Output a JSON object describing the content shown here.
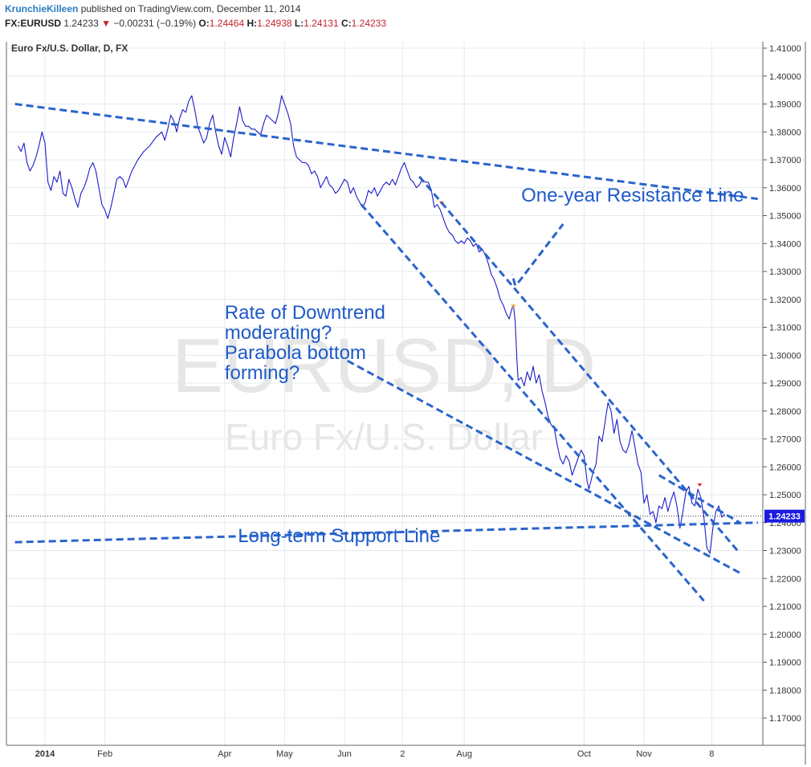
{
  "header": {
    "author": "KrunchieKilleen",
    "published_text": "published on TradingView.com, December 11, 2014",
    "symbol": "FX:EURUSD",
    "last": "1.24233",
    "change": "−0.00231 (−0.19%)",
    "open_label": "O:",
    "open": "1.24464",
    "high_label": "H:",
    "high": "1.24938",
    "low_label": "L:",
    "low": "1.24131",
    "close_label": "C:",
    "close": "1.24233"
  },
  "chart_data": {
    "type": "line",
    "title": "Euro Fx/U.S. Dollar, D, FX",
    "watermark_symbol": "EURUSD, D",
    "watermark_name": "Euro Fx/U.S. Dollar",
    "ylim": [
      1.16,
      1.415
    ],
    "y_ticks": [
      "1.41000",
      "1.40000",
      "1.39000",
      "1.38000",
      "1.37000",
      "1.36000",
      "1.35000",
      "1.34000",
      "1.33000",
      "1.32000",
      "1.31000",
      "1.30000",
      "1.29000",
      "1.28000",
      "1.27000",
      "1.26000",
      "1.25000",
      "1.24000",
      "1.23000",
      "1.22000",
      "1.21000",
      "1.20000",
      "1.19000",
      "1.18000",
      "1.17000"
    ],
    "x_ticks": [
      {
        "label": "2014",
        "t": 0.0,
        "bold": true
      },
      {
        "label": "Feb",
        "t": 1.0
      },
      {
        "label": "Apr",
        "t": 3.0
      },
      {
        "label": "May",
        "t": 4.0
      },
      {
        "label": "Jun",
        "t": 5.0
      },
      {
        "label": "2",
        "t": 5.97
      },
      {
        "label": "Aug",
        "t": 7.0
      },
      {
        "label": "Oct",
        "t": 9.0
      },
      {
        "label": "Nov",
        "t": 10.0
      },
      {
        "label": "8",
        "t": 11.13
      }
    ],
    "price_label": "1.24233",
    "price_level": 1.24233,
    "series": [
      {
        "color": "#1c1cc8",
        "points": [
          [
            -0.45,
            1.375
          ],
          [
            -0.4,
            1.373
          ],
          [
            -0.35,
            1.376
          ],
          [
            -0.3,
            1.369
          ],
          [
            -0.25,
            1.366
          ],
          [
            -0.2,
            1.368
          ],
          [
            -0.15,
            1.371
          ],
          [
            -0.1,
            1.375
          ],
          [
            -0.05,
            1.38
          ],
          [
            0.0,
            1.376
          ],
          [
            0.05,
            1.362
          ],
          [
            0.1,
            1.359
          ],
          [
            0.15,
            1.364
          ],
          [
            0.2,
            1.362
          ],
          [
            0.25,
            1.366
          ],
          [
            0.3,
            1.358
          ],
          [
            0.35,
            1.357
          ],
          [
            0.4,
            1.363
          ],
          [
            0.45,
            1.36
          ],
          [
            0.5,
            1.356
          ],
          [
            0.55,
            1.353
          ],
          [
            0.6,
            1.358
          ],
          [
            0.65,
            1.36
          ],
          [
            0.7,
            1.363
          ],
          [
            0.75,
            1.367
          ],
          [
            0.8,
            1.369
          ],
          [
            0.85,
            1.366
          ],
          [
            0.9,
            1.36
          ],
          [
            0.95,
            1.354
          ],
          [
            1.0,
            1.352
          ],
          [
            1.05,
            1.349
          ],
          [
            1.1,
            1.353
          ],
          [
            1.15,
            1.358
          ],
          [
            1.2,
            1.363
          ],
          [
            1.25,
            1.364
          ],
          [
            1.3,
            1.363
          ],
          [
            1.35,
            1.36
          ],
          [
            1.45,
            1.366
          ],
          [
            1.55,
            1.37
          ],
          [
            1.65,
            1.373
          ],
          [
            1.75,
            1.375
          ],
          [
            1.85,
            1.378
          ],
          [
            1.95,
            1.38
          ],
          [
            2.0,
            1.377
          ],
          [
            2.05,
            1.381
          ],
          [
            2.1,
            1.386
          ],
          [
            2.15,
            1.384
          ],
          [
            2.2,
            1.38
          ],
          [
            2.25,
            1.385
          ],
          [
            2.3,
            1.388
          ],
          [
            2.35,
            1.387
          ],
          [
            2.4,
            1.391
          ],
          [
            2.45,
            1.393
          ],
          [
            2.5,
            1.388
          ],
          [
            2.55,
            1.382
          ],
          [
            2.6,
            1.379
          ],
          [
            2.65,
            1.376
          ],
          [
            2.7,
            1.378
          ],
          [
            2.75,
            1.383
          ],
          [
            2.8,
            1.386
          ],
          [
            2.85,
            1.38
          ],
          [
            2.9,
            1.375
          ],
          [
            2.95,
            1.372
          ],
          [
            3.0,
            1.378
          ],
          [
            3.05,
            1.375
          ],
          [
            3.1,
            1.371
          ],
          [
            3.15,
            1.378
          ],
          [
            3.2,
            1.383
          ],
          [
            3.25,
            1.389
          ],
          [
            3.3,
            1.384
          ],
          [
            3.35,
            1.382
          ],
          [
            3.4,
            1.382
          ],
          [
            3.45,
            1.381
          ],
          [
            3.5,
            1.381
          ],
          [
            3.55,
            1.38
          ],
          [
            3.6,
            1.379
          ],
          [
            3.65,
            1.383
          ],
          [
            3.7,
            1.386
          ],
          [
            3.75,
            1.385
          ],
          [
            3.8,
            1.384
          ],
          [
            3.85,
            1.383
          ],
          [
            3.9,
            1.387
          ],
          [
            3.95,
            1.393
          ],
          [
            4.0,
            1.39
          ],
          [
            4.05,
            1.387
          ],
          [
            4.1,
            1.383
          ],
          [
            4.15,
            1.375
          ],
          [
            4.2,
            1.371
          ],
          [
            4.25,
            1.37
          ],
          [
            4.3,
            1.369
          ],
          [
            4.35,
            1.369
          ],
          [
            4.4,
            1.368
          ],
          [
            4.45,
            1.365
          ],
          [
            4.5,
            1.366
          ],
          [
            4.55,
            1.364
          ],
          [
            4.6,
            1.36
          ],
          [
            4.65,
            1.362
          ],
          [
            4.7,
            1.364
          ],
          [
            4.75,
            1.361
          ],
          [
            4.8,
            1.36
          ],
          [
            4.85,
            1.358
          ],
          [
            4.9,
            1.359
          ],
          [
            4.95,
            1.361
          ],
          [
            5.0,
            1.363
          ],
          [
            5.05,
            1.362
          ],
          [
            5.1,
            1.358
          ],
          [
            5.15,
            1.36
          ],
          [
            5.2,
            1.357
          ],
          [
            5.25,
            1.355
          ],
          [
            5.3,
            1.353
          ],
          [
            5.35,
            1.355
          ],
          [
            5.4,
            1.359
          ],
          [
            5.45,
            1.358
          ],
          [
            5.5,
            1.36
          ],
          [
            5.55,
            1.357
          ],
          [
            5.6,
            1.359
          ],
          [
            5.65,
            1.361
          ],
          [
            5.7,
            1.362
          ],
          [
            5.75,
            1.361
          ],
          [
            5.8,
            1.363
          ],
          [
            5.85,
            1.361
          ],
          [
            5.9,
            1.364
          ],
          [
            5.95,
            1.367
          ],
          [
            6.0,
            1.369
          ],
          [
            6.05,
            1.366
          ],
          [
            6.1,
            1.363
          ],
          [
            6.15,
            1.362
          ],
          [
            6.2,
            1.36
          ],
          [
            6.25,
            1.361
          ],
          [
            6.3,
            1.363
          ],
          [
            6.35,
            1.362
          ],
          [
            6.4,
            1.362
          ],
          [
            6.45,
            1.359
          ],
          [
            6.5,
            1.353
          ],
          [
            6.55,
            1.354
          ],
          [
            6.6,
            1.352
          ],
          [
            6.65,
            1.349
          ],
          [
            6.7,
            1.346
          ],
          [
            6.75,
            1.344
          ],
          [
            6.8,
            1.343
          ],
          [
            6.85,
            1.341
          ],
          [
            6.9,
            1.34
          ],
          [
            6.95,
            1.341
          ],
          [
            7.0,
            1.34
          ],
          [
            7.05,
            1.342
          ],
          [
            7.1,
            1.341
          ],
          [
            7.15,
            1.339
          ],
          [
            7.2,
            1.34
          ],
          [
            7.25,
            1.337
          ],
          [
            7.3,
            1.338
          ],
          [
            7.35,
            1.336
          ],
          [
            7.4,
            1.333
          ],
          [
            7.45,
            1.329
          ],
          [
            7.5,
            1.327
          ],
          [
            7.55,
            1.324
          ],
          [
            7.6,
            1.32
          ],
          [
            7.65,
            1.318
          ],
          [
            7.7,
            1.315
          ],
          [
            7.75,
            1.313
          ],
          [
            7.8,
            1.317
          ],
          [
            7.82,
            1.318
          ],
          [
            7.85,
            1.312
          ],
          [
            7.88,
            1.298
          ],
          [
            7.9,
            1.291
          ],
          [
            7.95,
            1.292
          ],
          [
            8.0,
            1.289
          ],
          [
            8.05,
            1.294
          ],
          [
            8.1,
            1.291
          ],
          [
            8.15,
            1.296
          ],
          [
            8.2,
            1.29
          ],
          [
            8.25,
            1.293
          ],
          [
            8.3,
            1.287
          ],
          [
            8.35,
            1.283
          ],
          [
            8.4,
            1.278
          ],
          [
            8.45,
            1.275
          ],
          [
            8.5,
            1.274
          ],
          [
            8.55,
            1.268
          ],
          [
            8.6,
            1.263
          ],
          [
            8.65,
            1.261
          ],
          [
            8.7,
            1.264
          ],
          [
            8.75,
            1.262
          ],
          [
            8.8,
            1.257
          ],
          [
            8.85,
            1.26
          ],
          [
            8.9,
            1.263
          ],
          [
            8.95,
            1.266
          ],
          [
            9.0,
            1.264
          ],
          [
            9.05,
            1.255
          ],
          [
            9.08,
            1.252
          ],
          [
            9.15,
            1.258
          ],
          [
            9.2,
            1.261
          ],
          [
            9.25,
            1.271
          ],
          [
            9.3,
            1.269
          ],
          [
            9.35,
            1.276
          ],
          [
            9.4,
            1.283
          ],
          [
            9.45,
            1.28
          ],
          [
            9.5,
            1.272
          ],
          [
            9.55,
            1.277
          ],
          [
            9.6,
            1.269
          ],
          [
            9.65,
            1.266
          ],
          [
            9.7,
            1.265
          ],
          [
            9.75,
            1.268
          ],
          [
            9.8,
            1.273
          ],
          [
            9.85,
            1.267
          ],
          [
            9.9,
            1.261
          ],
          [
            9.95,
            1.258
          ],
          [
            10.0,
            1.247
          ],
          [
            10.05,
            1.25
          ],
          [
            10.1,
            1.243
          ],
          [
            10.15,
            1.244
          ],
          [
            10.2,
            1.24
          ],
          [
            10.25,
            1.246
          ],
          [
            10.3,
            1.245
          ],
          [
            10.35,
            1.249
          ],
          [
            10.4,
            1.244
          ],
          [
            10.45,
            1.248
          ],
          [
            10.5,
            1.251
          ],
          [
            10.55,
            1.246
          ],
          [
            10.6,
            1.238
          ],
          [
            10.65,
            1.244
          ],
          [
            10.7,
            1.251
          ],
          [
            10.75,
            1.253
          ],
          [
            10.8,
            1.247
          ],
          [
            10.85,
            1.246
          ],
          [
            10.9,
            1.252
          ],
          [
            10.95,
            1.249
          ],
          [
            11.0,
            1.242
          ],
          [
            11.05,
            1.231
          ],
          [
            11.1,
            1.229
          ],
          [
            11.15,
            1.238
          ],
          [
            11.2,
            1.244
          ],
          [
            11.25,
            1.246
          ],
          [
            11.3,
            1.242
          ],
          [
            11.35,
            1.243
          ]
        ]
      }
    ],
    "trendlines": [
      {
        "name": "one-year-resistance-line",
        "from": [
          -0.5,
          1.39
        ],
        "to": [
          11.9,
          1.356
        ]
      },
      {
        "name": "long-term-support-line",
        "from": [
          -0.5,
          1.233
        ],
        "to": [
          11.9,
          1.24
        ]
      },
      {
        "name": "outer-channel-line",
        "from": [
          5.28,
          1.354
        ],
        "to": [
          11.0,
          1.212
        ]
      },
      {
        "name": "inner-channel-line",
        "from": [
          6.25,
          1.364
        ],
        "to": [
          11.6,
          1.229
        ]
      },
      {
        "name": "moderating-lower-line",
        "from": [
          5.05,
          1.298
        ],
        "to": [
          11.6,
          1.222
        ]
      },
      {
        "name": "moderating-upper-line",
        "from": [
          10.25,
          1.257
        ],
        "to": [
          11.6,
          1.24
        ]
      },
      {
        "name": "resistance-arrow-line",
        "from": [
          7.9,
          1.326
        ],
        "to": [
          8.65,
          1.347
        ]
      },
      {
        "name": "resistance-arrow-tick",
        "from": [
          7.85,
          1.325
        ],
        "to": [
          7.8,
          1.329
        ]
      }
    ],
    "annotations": [
      {
        "text": "One-year Resistance Line",
        "x": 7.95,
        "y": 1.355,
        "lines": [
          "One-year Resistance Line"
        ]
      },
      {
        "text": "Rate of Downtrend moderating? Parabola bottom forming?",
        "x": 3.0,
        "y": 1.313,
        "lines": [
          "Rate of Downtrend",
          "moderating?",
          "Parabola bottom",
          "forming?"
        ]
      },
      {
        "text": "Long-term Support Line",
        "x": 3.22,
        "y": 1.233,
        "lines": [
          "Long-term Support Line"
        ]
      }
    ],
    "markers": [
      {
        "x": 6.62,
        "y": 1.3545,
        "color": "#e03030"
      },
      {
        "x": 7.82,
        "y": 1.3175,
        "color": "#f0a020"
      },
      {
        "x": 10.93,
        "y": 1.2535,
        "color": "#e03030"
      }
    ],
    "colors": {
      "trendline": "#2a64cc",
      "annotation": "#1e5ac8",
      "price_badge": "#1a1ae0",
      "grid": "#e6e9ef",
      "watermark": "#e6e6e6"
    },
    "grid": true
  }
}
